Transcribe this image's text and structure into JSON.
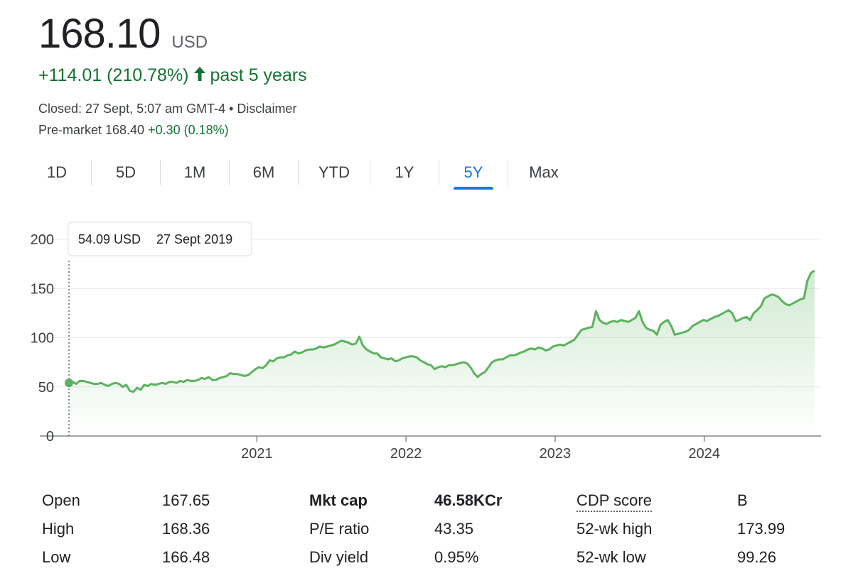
{
  "quote": {
    "price": "168.10",
    "currency": "USD",
    "change_text": "+114.01 (210.78%)",
    "period_text": "past 5 years",
    "closed_text": "Closed: 27 Sept, 5:07 am GMT-4 • Disclaimer",
    "premarket_label": "Pre-market 168.40",
    "premarket_change": "+0.30 (0.18%)"
  },
  "colors": {
    "up": "#137333",
    "line": "#5ab35c",
    "accent": "#1a73e8"
  },
  "icons": {
    "change_arrow": "arrow-up-icon"
  },
  "tabs": [
    {
      "label": "1D",
      "active": false
    },
    {
      "label": "5D",
      "active": false
    },
    {
      "label": "1M",
      "active": false
    },
    {
      "label": "6M",
      "active": false
    },
    {
      "label": "YTD",
      "active": false
    },
    {
      "label": "1Y",
      "active": false
    },
    {
      "label": "5Y",
      "active": true
    },
    {
      "label": "Max",
      "active": false
    }
  ],
  "tooltip": {
    "value": "54.09 USD",
    "date": "27 Sept 2019"
  },
  "chart_data": {
    "type": "area",
    "x_start": 2019.74,
    "x_end": 2024.74,
    "ylim": [
      0,
      200
    ],
    "y_ticks": [
      "0",
      "50",
      "100",
      "150",
      "200"
    ],
    "x_ticks": [
      {
        "label": "2021",
        "x": 2021.0
      },
      {
        "label": "2022",
        "x": 2022.0
      },
      {
        "label": "2023",
        "x": 2023.0
      },
      {
        "label": "2024",
        "x": 2024.0
      }
    ],
    "grid": true,
    "series": [
      {
        "values": [
          54.09,
          55,
          53,
          56,
          56,
          55,
          54,
          53,
          53,
          54,
          52,
          51,
          53,
          54,
          53,
          50,
          52,
          46,
          45,
          49,
          47,
          52,
          51,
          53,
          52,
          53,
          54,
          53,
          55,
          55,
          54,
          56,
          55,
          57,
          56,
          56,
          57,
          59,
          58,
          60,
          57,
          57,
          59,
          60,
          61,
          64,
          63,
          63,
          62,
          61,
          62,
          65,
          68,
          70,
          69,
          72,
          77,
          76,
          79,
          80,
          80,
          82,
          83,
          86,
          84,
          85,
          87,
          88,
          88,
          89,
          91,
          90,
          91,
          92,
          93,
          95,
          97,
          96,
          95,
          93,
          94,
          101,
          92,
          88,
          86,
          84,
          84,
          80,
          79,
          78,
          79,
          76,
          77,
          79,
          80,
          81,
          81,
          80,
          77,
          75,
          73,
          72,
          68,
          70,
          71,
          70,
          72,
          72,
          73,
          74,
          75,
          74,
          70,
          64,
          60,
          63,
          65,
          70,
          75,
          77,
          78,
          78,
          80,
          82,
          82,
          83,
          85,
          86,
          88,
          89,
          88,
          90,
          89,
          87,
          88,
          91,
          92,
          93,
          92,
          94,
          96,
          98,
          103,
          108,
          109,
          110,
          111,
          127,
          118,
          115,
          114,
          116,
          117,
          116,
          118,
          117,
          116,
          118,
          120,
          127,
          116,
          110,
          108,
          107,
          103,
          113,
          116,
          118,
          112,
          103,
          104,
          105,
          106,
          108,
          112,
          114,
          116,
          118,
          117,
          119,
          121,
          122,
          124,
          126,
          128,
          125,
          117,
          118,
          120,
          121,
          118,
          125,
          128,
          132,
          140,
          142,
          144,
          143,
          141,
          137,
          134,
          133,
          135,
          137,
          139,
          140,
          158,
          166,
          168.1
        ]
      }
    ]
  },
  "stats": {
    "col1": [
      {
        "label": "Open",
        "value": "167.65"
      },
      {
        "label": "High",
        "value": "168.36"
      },
      {
        "label": "Low",
        "value": "166.48"
      }
    ],
    "col2": [
      {
        "label": "Mkt cap",
        "value": "46.58KCr"
      },
      {
        "label": "P/E ratio",
        "value": "43.35"
      },
      {
        "label": "Div yield",
        "value": "0.95%"
      }
    ],
    "col3": [
      {
        "label": "CDP score",
        "value": "B"
      },
      {
        "label": "52-wk high",
        "value": "173.99"
      },
      {
        "label": "52-wk low",
        "value": "99.26"
      }
    ]
  }
}
